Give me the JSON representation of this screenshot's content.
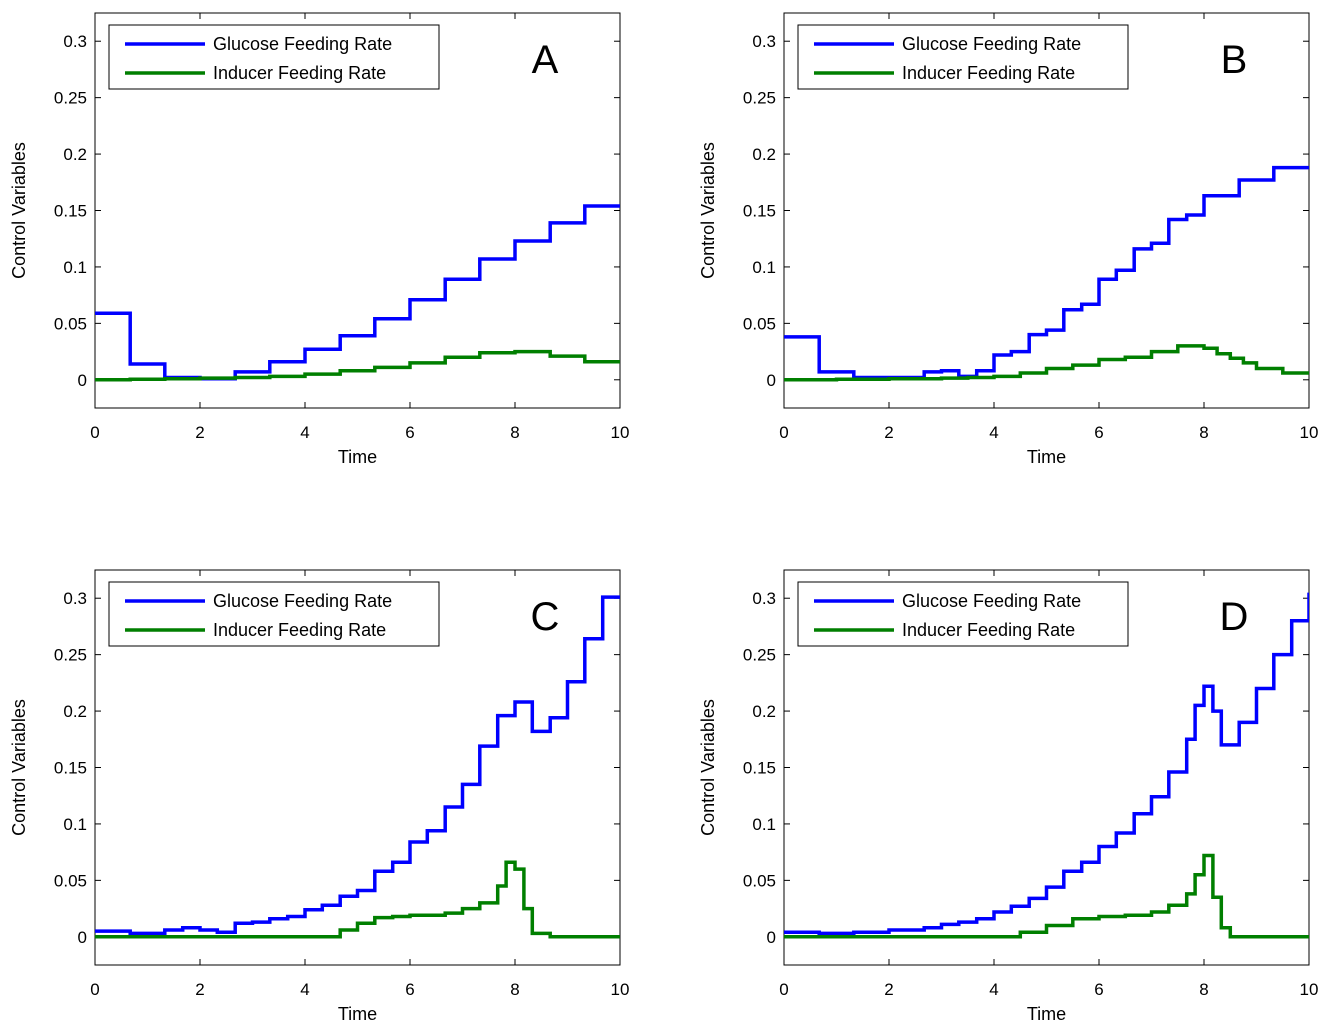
{
  "figure": {
    "background": "#ffffff"
  },
  "chart_data": [
    {
      "type": "line",
      "panel_label": "A",
      "xlabel": "Time",
      "ylabel": "Control Variables",
      "xlim": [
        0,
        10
      ],
      "ylim": [
        -0.025,
        0.325
      ],
      "xticks": [
        0,
        2,
        4,
        6,
        8,
        10
      ],
      "yticks": [
        0,
        0.05,
        0.1,
        0.15,
        0.2,
        0.25,
        0.3
      ],
      "xtick_labels": [
        "0",
        "2",
        "4",
        "6",
        "8",
        "10"
      ],
      "ytick_labels": [
        "0",
        "0.05",
        "0.1",
        "0.15",
        "0.2",
        "0.25",
        "0.3"
      ],
      "legend": {
        "position": "top-left",
        "entries": [
          "Glucose Feeding Rate",
          "Inducer Feeding Rate"
        ]
      },
      "series": [
        {
          "name": "Glucose Feeding Rate",
          "color": "#0000ff",
          "step": true,
          "x": [
            0,
            0.67,
            1.33,
            2.0,
            2.67,
            3.33,
            4.0,
            4.67,
            5.33,
            6.0,
            6.67,
            7.33,
            8.0,
            8.67,
            9.33
          ],
          "y": [
            0.059,
            0.014,
            0.002,
            0.001,
            0.007,
            0.016,
            0.027,
            0.039,
            0.054,
            0.071,
            0.089,
            0.107,
            0.123,
            0.139,
            0.154
          ]
        },
        {
          "name": "Inducer Feeding Rate",
          "color": "#007f00",
          "step": true,
          "x": [
            0,
            0.67,
            1.33,
            2.0,
            2.67,
            3.33,
            4.0,
            4.67,
            5.33,
            6.0,
            6.67,
            7.33,
            8.0,
            8.67,
            9.33
          ],
          "y": [
            0.0,
            0.0005,
            0.001,
            0.0015,
            0.002,
            0.003,
            0.005,
            0.008,
            0.011,
            0.015,
            0.02,
            0.024,
            0.025,
            0.021,
            0.016
          ]
        }
      ]
    },
    {
      "type": "line",
      "panel_label": "B",
      "xlabel": "Time",
      "ylabel": "Control Variables",
      "xlim": [
        0,
        10
      ],
      "ylim": [
        -0.025,
        0.325
      ],
      "xticks": [
        0,
        2,
        4,
        6,
        8,
        10
      ],
      "yticks": [
        0,
        0.05,
        0.1,
        0.15,
        0.2,
        0.25,
        0.3
      ],
      "xtick_labels": [
        "0",
        "2",
        "4",
        "6",
        "8",
        "10"
      ],
      "ytick_labels": [
        "0",
        "0.05",
        "0.1",
        "0.15",
        "0.2",
        "0.25",
        "0.3"
      ],
      "legend": {
        "position": "top-left",
        "entries": [
          "Glucose Feeding Rate",
          "Inducer Feeding Rate"
        ]
      },
      "series": [
        {
          "name": "Glucose Feeding Rate",
          "color": "#0000ff",
          "step": true,
          "x": [
            0,
            0.67,
            1.33,
            2.0,
            2.67,
            3.0,
            3.33,
            3.67,
            4.0,
            4.33,
            4.67,
            5.0,
            5.33,
            5.67,
            6.0,
            6.33,
            6.67,
            7.0,
            7.33,
            7.67,
            8.0,
            8.67,
            9.33
          ],
          "y": [
            0.038,
            0.007,
            0.002,
            0.002,
            0.007,
            0.008,
            0.003,
            0.008,
            0.022,
            0.025,
            0.04,
            0.044,
            0.062,
            0.067,
            0.089,
            0.097,
            0.116,
            0.121,
            0.142,
            0.146,
            0.163,
            0.177,
            0.188
          ]
        },
        {
          "name": "Inducer Feeding Rate",
          "color": "#007f00",
          "step": true,
          "x": [
            0,
            1.0,
            2.0,
            3.0,
            3.5,
            4.0,
            4.5,
            5.0,
            5.5,
            6.0,
            6.5,
            7.0,
            7.5,
            8.0,
            8.25,
            8.5,
            8.75,
            9.0,
            9.5
          ],
          "y": [
            0.0,
            0.0005,
            0.001,
            0.0015,
            0.002,
            0.003,
            0.006,
            0.01,
            0.013,
            0.018,
            0.02,
            0.025,
            0.03,
            0.028,
            0.023,
            0.019,
            0.015,
            0.01,
            0.006
          ]
        }
      ]
    },
    {
      "type": "line",
      "panel_label": "C",
      "xlabel": "Time",
      "ylabel": "Control Variables",
      "xlim": [
        0,
        10
      ],
      "ylim": [
        -0.025,
        0.325
      ],
      "xticks": [
        0,
        2,
        4,
        6,
        8,
        10
      ],
      "yticks": [
        0,
        0.05,
        0.1,
        0.15,
        0.2,
        0.25,
        0.3
      ],
      "xtick_labels": [
        "0",
        "2",
        "4",
        "6",
        "8",
        "10"
      ],
      "ytick_labels": [
        "0",
        "0.05",
        "0.1",
        "0.15",
        "0.2",
        "0.25",
        "0.3"
      ],
      "legend": {
        "position": "top-left",
        "entries": [
          "Glucose Feeding Rate",
          "Inducer Feeding Rate"
        ]
      },
      "series": [
        {
          "name": "Glucose Feeding Rate",
          "color": "#0000ff",
          "step": true,
          "x": [
            0,
            0.67,
            1.33,
            1.67,
            2.0,
            2.33,
            2.67,
            3.0,
            3.33,
            3.67,
            4.0,
            4.33,
            4.67,
            5.0,
            5.33,
            5.67,
            6.0,
            6.33,
            6.67,
            7.0,
            7.33,
            7.67,
            8.0,
            8.33,
            8.67,
            9.0,
            9.33,
            9.67
          ],
          "y": [
            0.005,
            0.003,
            0.006,
            0.008,
            0.006,
            0.004,
            0.012,
            0.013,
            0.016,
            0.018,
            0.024,
            0.028,
            0.036,
            0.041,
            0.058,
            0.066,
            0.084,
            0.094,
            0.115,
            0.135,
            0.169,
            0.196,
            0.208,
            0.182,
            0.194,
            0.226,
            0.264,
            0.301
          ]
        },
        {
          "name": "Inducer Feeding Rate",
          "color": "#007f00",
          "step": true,
          "x": [
            0,
            4.67,
            5.0,
            5.33,
            5.67,
            6.0,
            6.67,
            7.0,
            7.33,
            7.67,
            7.83,
            8.0,
            8.17,
            8.33,
            8.67
          ],
          "y": [
            0.0,
            0.006,
            0.012,
            0.017,
            0.018,
            0.019,
            0.021,
            0.025,
            0.03,
            0.045,
            0.066,
            0.06,
            0.025,
            0.003,
            0.0
          ]
        }
      ]
    },
    {
      "type": "line",
      "panel_label": "D",
      "xlabel": "Time",
      "ylabel": "Control Variables",
      "xlim": [
        0,
        10
      ],
      "ylim": [
        -0.025,
        0.325
      ],
      "xticks": [
        0,
        2,
        4,
        6,
        8,
        10
      ],
      "yticks": [
        0,
        0.05,
        0.1,
        0.15,
        0.2,
        0.25,
        0.3
      ],
      "xtick_labels": [
        "0",
        "2",
        "4",
        "6",
        "8",
        "10"
      ],
      "ytick_labels": [
        "0",
        "0.05",
        "0.1",
        "0.15",
        "0.2",
        "0.25",
        "0.3"
      ],
      "legend": {
        "position": "top-left",
        "entries": [
          "Glucose Feeding Rate",
          "Inducer Feeding Rate"
        ]
      },
      "series": [
        {
          "name": "Glucose Feeding Rate",
          "color": "#0000ff",
          "step": true,
          "x": [
            0,
            0.67,
            1.33,
            2.0,
            2.67,
            3.0,
            3.33,
            3.67,
            4.0,
            4.33,
            4.67,
            5.0,
            5.33,
            5.67,
            6.0,
            6.33,
            6.67,
            7.0,
            7.33,
            7.67,
            7.83,
            8.0,
            8.17,
            8.33,
            8.67,
            9.0,
            9.33,
            9.67,
            10.0
          ],
          "y": [
            0.004,
            0.003,
            0.004,
            0.006,
            0.008,
            0.011,
            0.013,
            0.016,
            0.022,
            0.027,
            0.034,
            0.044,
            0.058,
            0.066,
            0.08,
            0.092,
            0.109,
            0.124,
            0.146,
            0.175,
            0.205,
            0.222,
            0.2,
            0.17,
            0.19,
            0.22,
            0.25,
            0.28,
            0.305
          ]
        },
        {
          "name": "Inducer Feeding Rate",
          "color": "#007f00",
          "step": true,
          "x": [
            0,
            4.5,
            5.0,
            5.5,
            6.0,
            6.5,
            7.0,
            7.33,
            7.67,
            7.83,
            8.0,
            8.17,
            8.33,
            8.5
          ],
          "y": [
            0.0,
            0.004,
            0.01,
            0.016,
            0.018,
            0.019,
            0.022,
            0.028,
            0.038,
            0.055,
            0.072,
            0.035,
            0.008,
            0.0
          ]
        }
      ]
    }
  ]
}
